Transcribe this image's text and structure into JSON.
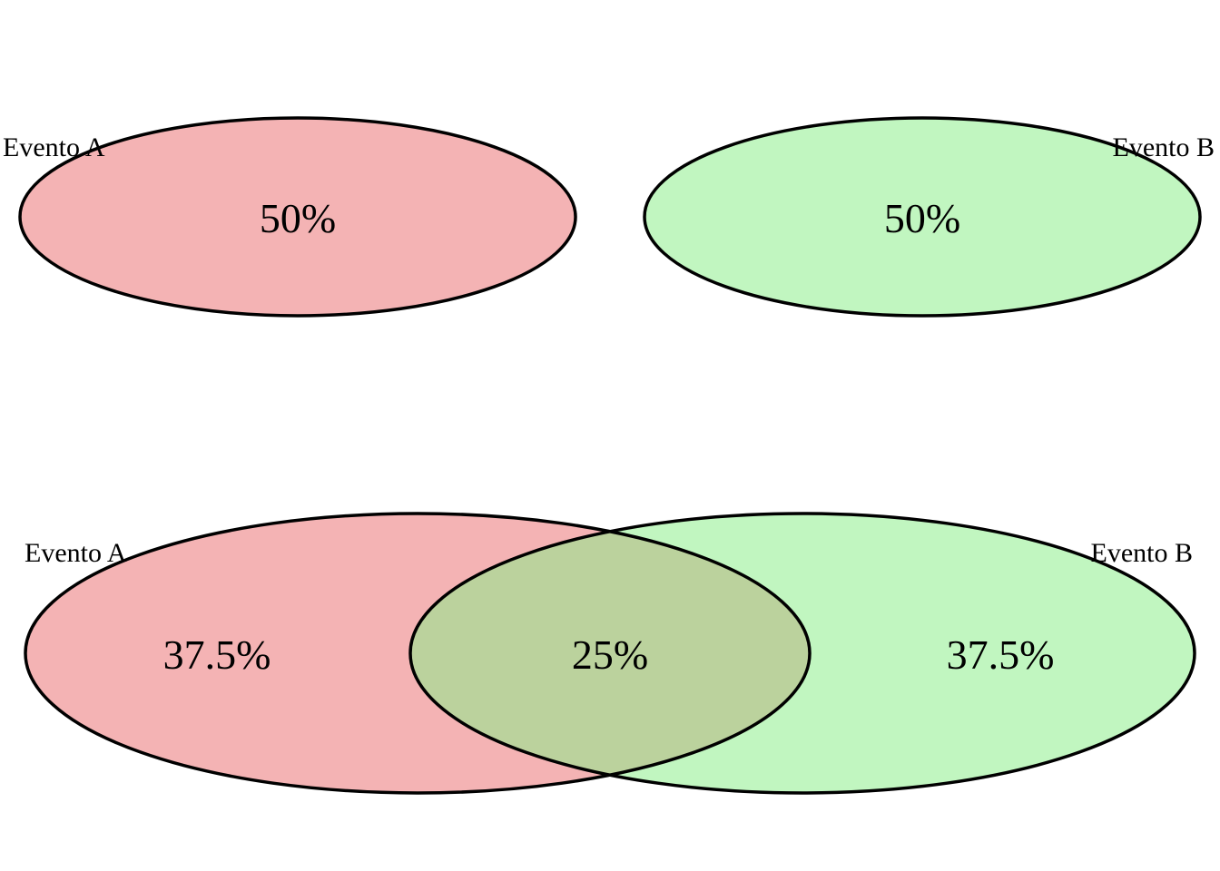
{
  "colors": {
    "event_a": "#f4b3b4",
    "event_b": "#c1f6c0",
    "overlap": "#bbd29d",
    "outline": "#000000"
  },
  "top_diagram": {
    "event_a": {
      "label": "Evento A",
      "value": "50%"
    },
    "event_b": {
      "label": "Evento B",
      "value": "50%"
    }
  },
  "bottom_diagram": {
    "event_a": {
      "label": "Evento A",
      "value": "37.5%"
    },
    "intersection": {
      "value": "25%"
    },
    "event_b": {
      "label": "Evento B",
      "value": "37.5%"
    }
  }
}
